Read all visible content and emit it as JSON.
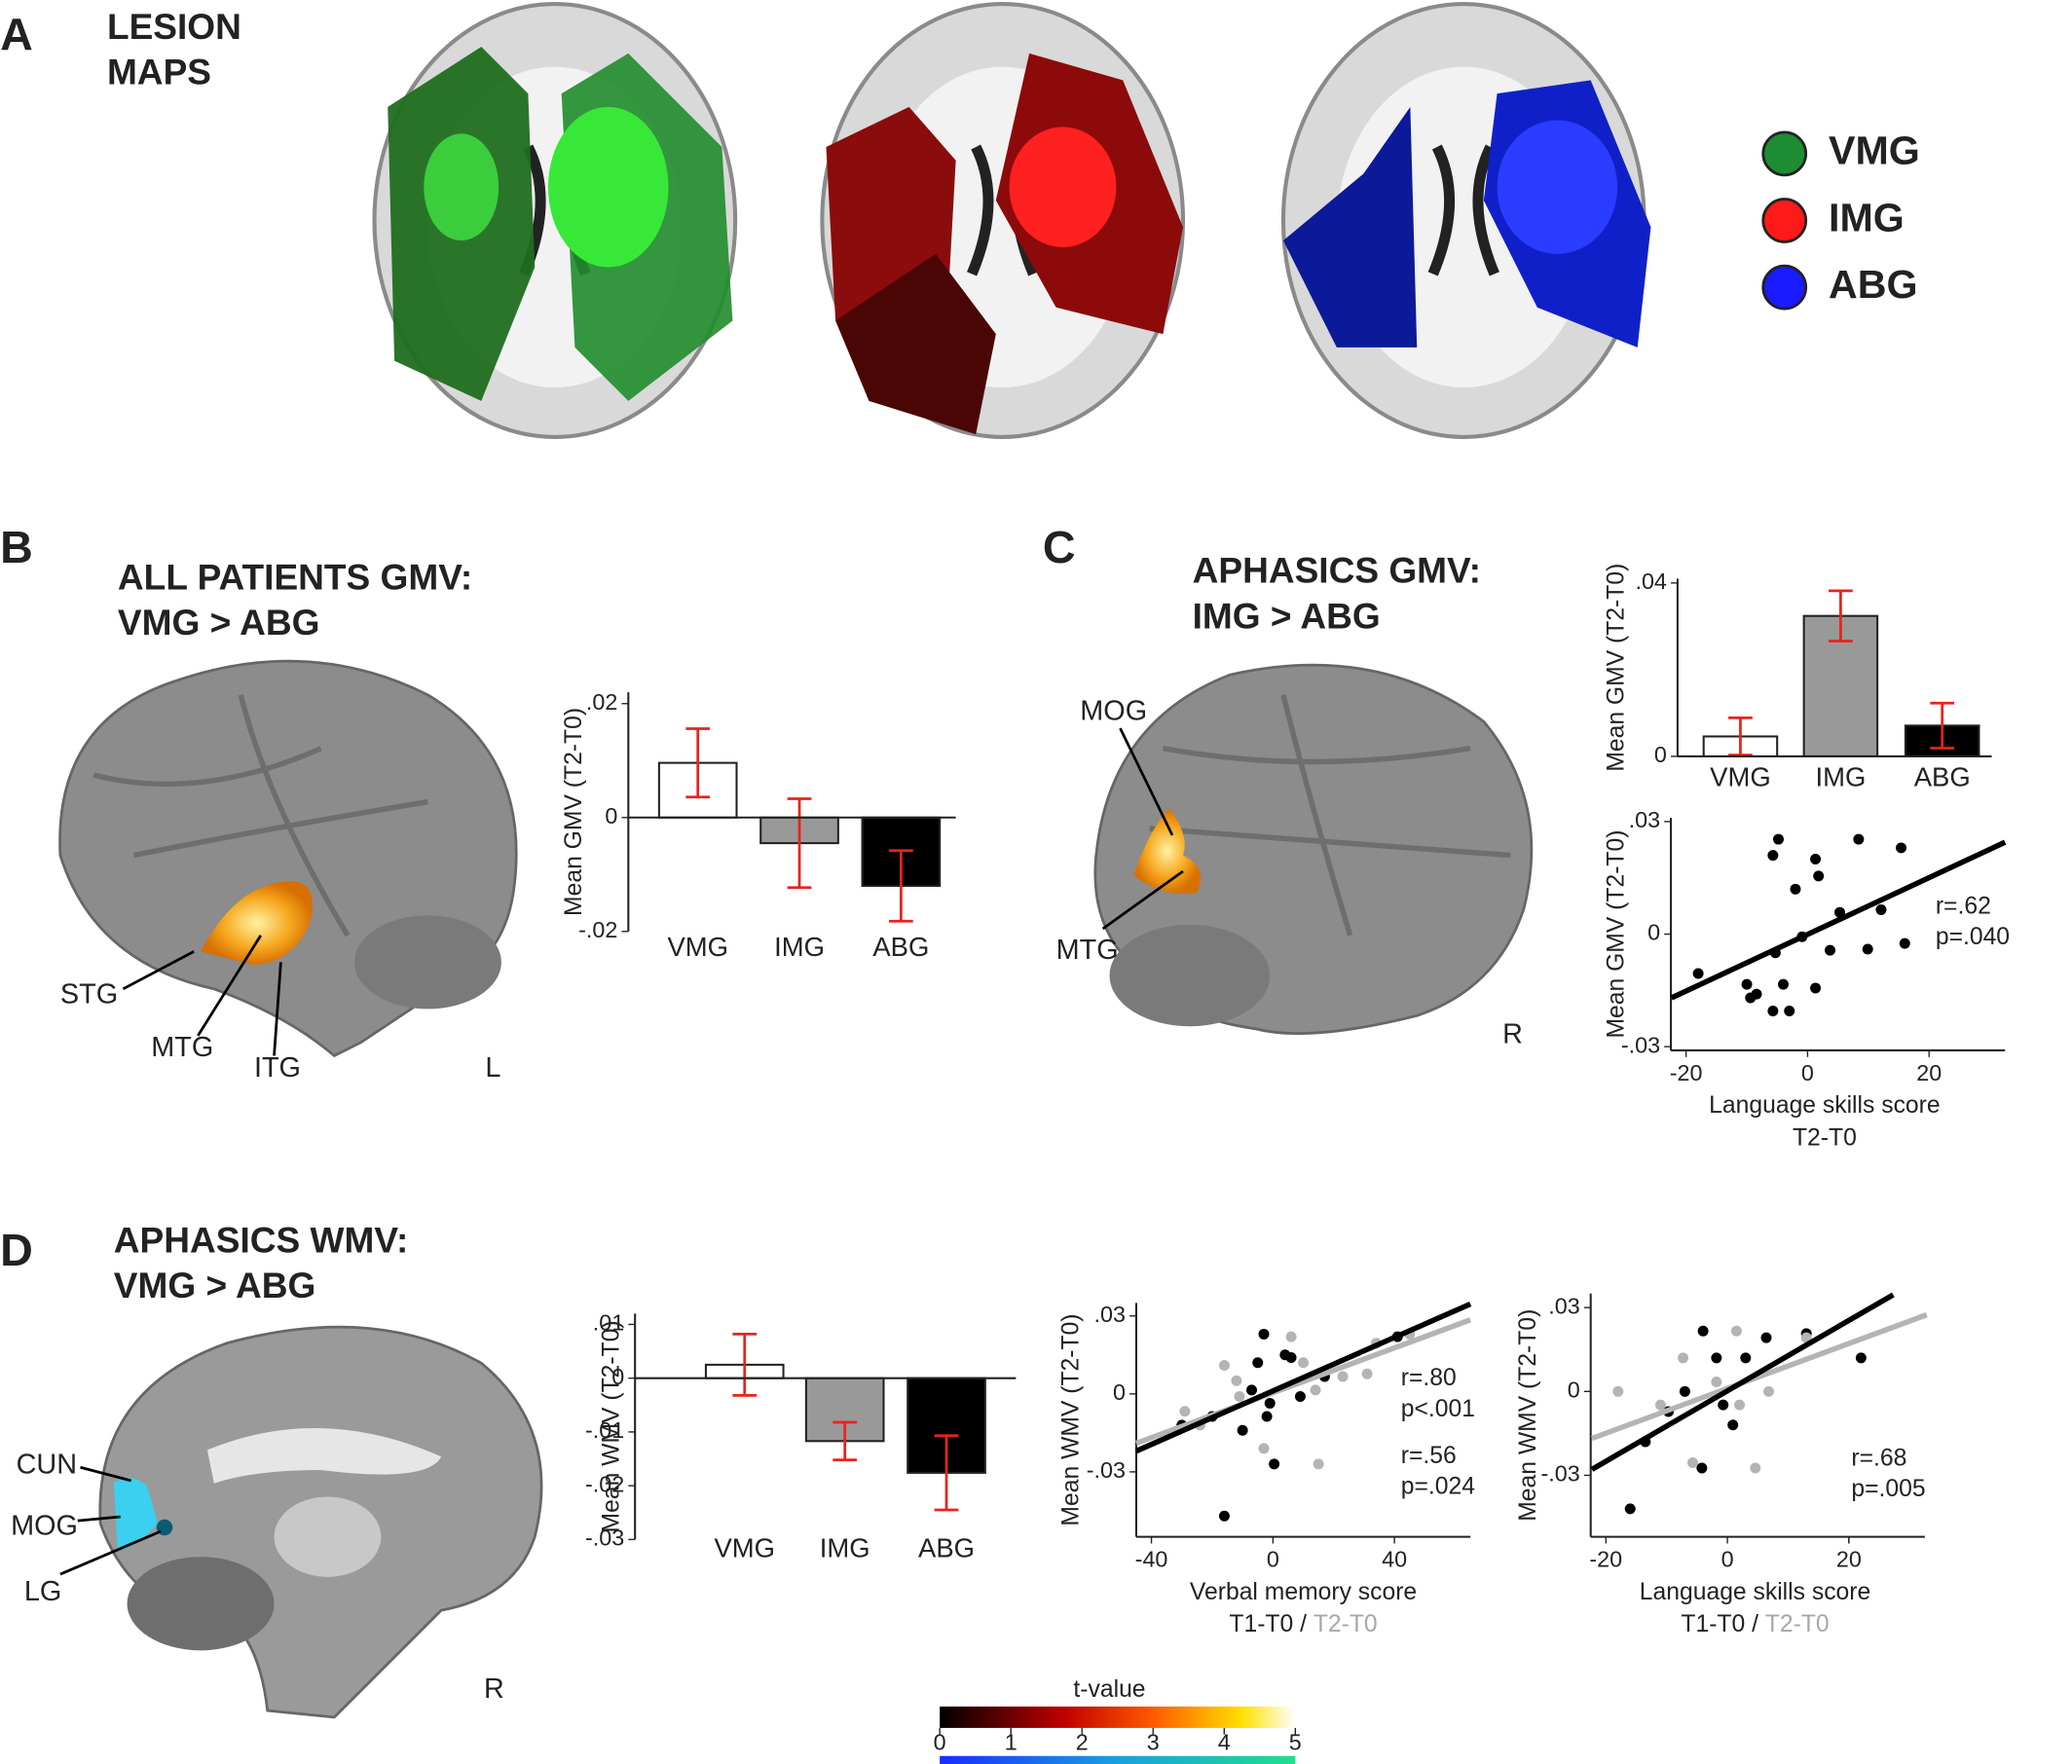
{
  "panels": {
    "A": {
      "label": "A",
      "title": [
        "LESION",
        "MAPS"
      ],
      "legend": [
        {
          "name": "VMG",
          "color": "#1e8c32"
        },
        {
          "name": "IMG",
          "color": "#ff1a1a"
        },
        {
          "name": "ABG",
          "color": "#1a1aff"
        }
      ]
    },
    "B": {
      "label": "B",
      "title": [
        "ALL PATIENTS GMV:",
        "VMG > ABG"
      ],
      "regions": [
        "STG",
        "MTG",
        "ITG"
      ],
      "side": "L"
    },
    "C": {
      "label": "C",
      "title": [
        "APHASICS GMV:",
        "IMG > ABG"
      ],
      "regions": [
        "MOG",
        "MTG"
      ],
      "side": "R"
    },
    "D": {
      "label": "D",
      "title": [
        "APHASICS WMV:",
        "VMG > ABG"
      ],
      "regions": [
        "CUN",
        "MOG",
        "LG"
      ],
      "side": "R"
    }
  },
  "colorbar": {
    "label": "t-value",
    "ticks": [
      0,
      1,
      2,
      3,
      4,
      5
    ]
  },
  "chart_data": [
    {
      "type": "bar",
      "categories": [
        "VMG",
        "IMG",
        "ABG"
      ],
      "values": [
        0.0096,
        -0.0045,
        -0.012
      ],
      "errors": [
        0.006,
        0.0078,
        0.0062
      ],
      "colors": [
        "#ffffff",
        "#999999",
        "#000000"
      ],
      "error_color": "#e8231c",
      "ylabel": "Mean GMV (T2-T0)",
      "ylim": [
        -0.02,
        0.022
      ],
      "yticks": [
        {
          "value": 0.02,
          "label": ".02"
        },
        0,
        {
          "value": -0.02,
          "label": "-.02"
        }
      ]
    },
    {
      "type": "bar",
      "categories": [
        "VMG",
        "IMG",
        "ABG"
      ],
      "values": [
        0.0046,
        0.0324,
        0.0071
      ],
      "errors": [
        0.0043,
        0.0058,
        0.0052
      ],
      "colors": [
        "#ffffff",
        "#999999",
        "#000000"
      ],
      "error_color": "#e8231c",
      "ylabel": "Mean GMV (T2-T0)",
      "ylim": [
        0,
        0.041
      ],
      "yticks": [
        0,
        {
          "value": 0.04,
          "label": ".04"
        }
      ]
    },
    {
      "type": "scatter",
      "xlabel": "Language skills score",
      "xlabel2": [
        "T2-T0"
      ],
      "xlabel2_colors": [
        "#222222"
      ],
      "ylabel": "Mean GMV (T2-T0)",
      "xlim": [
        -22.5,
        32.5
      ],
      "ylim": [
        -0.031,
        0.031
      ],
      "xticks": [
        -20,
        0,
        20
      ],
      "yticks": [
        {
          "value": 0.03,
          "label": ".03"
        },
        0,
        {
          "value": -0.03,
          "label": "-.03"
        }
      ],
      "series": [
        {
          "color": "#000000",
          "x": [
            -18,
            -10,
            -9.4,
            -8.4,
            -5.7,
            -3,
            -5.7,
            -4.8,
            -5.3,
            -4,
            -2,
            -0.9,
            1.3,
            1.8,
            1.3,
            3.7,
            5.3,
            8.4,
            9.9,
            12.1,
            15.4,
            16
          ],
          "values": [
            -0.0105,
            -0.0134,
            -0.017,
            -0.016,
            -0.0205,
            -0.0205,
            0.021,
            0.0253,
            -0.005,
            -0.0134,
            0.012,
            -0.0007,
            0.02,
            0.0155,
            -0.0144,
            -0.0043,
            0.0058,
            0.0253,
            -0.004,
            0.0065,
            0.023,
            -0.0025
          ],
          "fit": {
            "x": [
              -22.4,
              32.5
            ],
            "y": [
              -0.017,
              0.0245
            ]
          }
        }
      ],
      "annotations": [
        {
          "text": "r=.62",
          "color": "#222222"
        },
        {
          "text": "p=.040",
          "color": "#222222"
        }
      ]
    },
    {
      "type": "bar",
      "categories": [
        "VMG",
        "IMG",
        "ABG"
      ],
      "values": [
        0.0025,
        -0.0117,
        -0.0176
      ],
      "errors": [
        0.0057,
        0.0035,
        0.0069
      ],
      "colors": [
        "#ffffff",
        "#999999",
        "#000000"
      ],
      "error_color": "#e8231c",
      "ylabel": "Mean WMV (T2-T0)",
      "ylim": [
        -0.03,
        0.012
      ],
      "yticks": [
        {
          "value": 0.01,
          "label": ".01"
        },
        0,
        {
          "value": -0.01,
          "label": "-.01"
        },
        {
          "value": -0.02,
          "label": "-.02"
        },
        {
          "value": -0.03,
          "label": "-.03"
        }
      ]
    },
    {
      "type": "scatter",
      "xlabel": "Verbal memory score",
      "xlabel2": [
        "T1-T0",
        "/",
        "T2-T0"
      ],
      "xlabel2_colors": [
        "#222222",
        "#222222",
        "#a8a8a8"
      ],
      "ylabel": "Mean WMV (T2-T0)",
      "xlim": [
        -45,
        65
      ],
      "ylim": [
        -0.055,
        0.035
      ],
      "xticks": [
        -40,
        0,
        40
      ],
      "yticks": [
        {
          "value": 0.03,
          "label": ".03"
        },
        0,
        {
          "value": -0.03,
          "label": "-.03"
        }
      ],
      "series": [
        {
          "name": "T1-T0",
          "color": "#000000",
          "x": [
            -30,
            -16,
            -3,
            -7,
            -1,
            -5,
            4,
            6,
            9,
            0.4,
            -20,
            -10,
            -2,
            41,
            17
          ],
          "values": [
            -0.012,
            -0.047,
            0.023,
            0.0015,
            -0.0036,
            0.012,
            0.015,
            0.014,
            -0.001,
            -0.027,
            -0.0087,
            -0.014,
            -0.0087,
            0.022,
            0.0067
          ],
          "fit": {
            "x": [
              -45,
              65
            ],
            "y": [
              -0.022,
              0.0346
            ]
          }
        },
        {
          "name": "T2-T0",
          "color": "#b4b4b4",
          "x": [
            -29,
            -24,
            -16,
            -12,
            -11,
            6,
            10,
            14,
            15,
            23,
            34,
            45,
            31,
            -3
          ],
          "values": [
            -0.0067,
            -0.012,
            0.011,
            0.0051,
            -0.001,
            0.022,
            0.012,
            0.0015,
            -0.027,
            0.0067,
            0.0195,
            0.023,
            0.0077,
            -0.021
          ],
          "fit": {
            "x": [
              -45,
              65
            ],
            "y": [
              -0.019,
              0.0285
            ]
          }
        }
      ],
      "annotations": [
        {
          "text": "r=.80",
          "color": "#222222"
        },
        {
          "text": "p<.001",
          "color": "#222222"
        },
        {
          "text": "r=.56",
          "color": "#b4b4b4"
        },
        {
          "text": "p=.024",
          "color": "#b4b4b4"
        }
      ]
    },
    {
      "type": "scatter",
      "xlabel": "Language skills score",
      "xlabel2": [
        "T1-T0",
        "/",
        "T2-T0"
      ],
      "xlabel2_colors": [
        "#222222",
        "#222222",
        "#a8a8a8"
      ],
      "ylabel": "Mean WMV (T2-T0)",
      "xlim": [
        -22.5,
        32.5
      ],
      "ylim": [
        -0.052,
        0.035
      ],
      "xticks": [
        -20,
        0,
        20,
        {
          "value": 20,
          "label": "20"
        }
      ],
      "yticks": [
        {
          "value": 0.03,
          "label": ".03"
        },
        0,
        {
          "value": -0.03,
          "label": "-.03"
        }
      ],
      "series": [
        {
          "name": "T1-T0",
          "color": "#000000",
          "x": [
            -16,
            -13.5,
            -9.7,
            -7,
            -4,
            -1.8,
            -4.2,
            0.9,
            3,
            6.4,
            13,
            22,
            -0.7
          ],
          "values": [
            -0.042,
            -0.018,
            -0.0072,
            0,
            0.0216,
            0.012,
            -0.0274,
            -0.012,
            0.012,
            0.0192,
            0.0207,
            0.012,
            -0.0048
          ],
          "fit": {
            "x": [
              -22.3,
              27.3
            ],
            "y": [
              -0.0279,
              0.0346
            ]
          }
        },
        {
          "name": "T2-T0",
          "color": "#b4b4b4",
          "x": [
            -18,
            -7.3,
            -5.7,
            1.5,
            4.6,
            6.8,
            -1.8,
            -11,
            13,
            2
          ],
          "values": [
            0,
            0.012,
            -0.0255,
            0.0216,
            -0.0274,
            0,
            0.0034,
            -0.0048,
            0.0192,
            -0.0048
          ],
          "fit": {
            "x": [
              -22.3,
              32.8
            ],
            "y": [
              -0.0168,
              0.0274
            ]
          }
        }
      ],
      "annotations": [
        {
          "text": "r=.68",
          "color": "#b4b4b4"
        },
        {
          "text": "p=.005",
          "color": "#b4b4b4"
        }
      ]
    }
  ]
}
